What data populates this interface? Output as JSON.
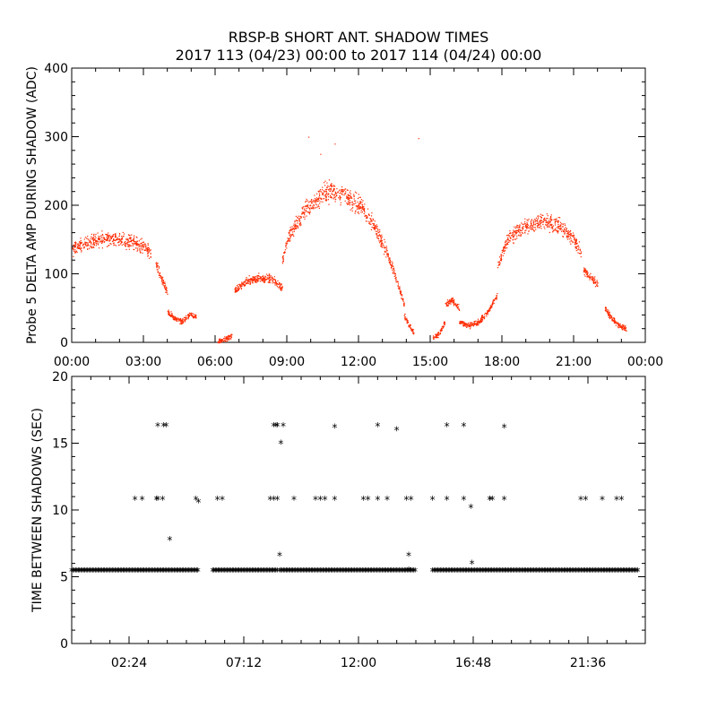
{
  "chart_data": [
    {
      "type": "scatter",
      "title": "RBSP-B SHORT ANT. SHADOW TIMES",
      "subtitle": "2017 113 (04/23) 00:00 to 2017 114 (04/24) 00:00",
      "xlabel": "",
      "ylabel": "Probe 5 DELTA AMP DURING SHADOW (ADC)",
      "xlim_hours": [
        0,
        24
      ],
      "ylim": [
        0,
        400
      ],
      "x_ticks": [
        "00:00",
        "03:00",
        "06:00",
        "09:00",
        "12:00",
        "15:00",
        "18:00",
        "21:00",
        "00:00"
      ],
      "y_ticks": [
        "0",
        "100",
        "200",
        "300",
        "400"
      ],
      "series": [
        {
          "name": "Probe 5 delta amp",
          "color": "#ff2a00",
          "segments": [
            {
              "hours": [
                0.0,
                0.5,
                1.0,
                1.5,
                2.0,
                2.5,
                3.0,
                3.3
              ],
              "values": [
                135,
                145,
                150,
                152,
                150,
                148,
                140,
                130
              ]
            },
            {
              "hours": [
                3.5,
                3.8,
                4.0
              ],
              "values": [
                115,
                90,
                70
              ]
            },
            {
              "hours": [
                4.0,
                4.3,
                4.6,
                4.9,
                5.2
              ],
              "values": [
                45,
                35,
                30,
                40,
                38
              ]
            },
            {
              "hours": [
                6.1,
                6.4,
                6.7
              ],
              "values": [
                2,
                5,
                10
              ]
            },
            {
              "hours": [
                6.8,
                7.2,
                7.6,
                8.0,
                8.4,
                8.8
              ],
              "values": [
                75,
                88,
                92,
                95,
                92,
                80
              ]
            },
            {
              "hours": [
                8.8,
                9.0,
                9.3,
                9.6
              ],
              "values": [
                120,
                150,
                170,
                180
              ]
            },
            {
              "hours": [
                9.6,
                10.0,
                10.4,
                10.8,
                11.2,
                11.6,
                12.0,
                12.4,
                12.8,
                13.2,
                13.6,
                13.9
              ],
              "values": [
                190,
                200,
                215,
                222,
                218,
                210,
                200,
                185,
                160,
                130,
                90,
                55
              ]
            },
            {
              "hours": [
                13.9,
                14.1,
                14.3
              ],
              "values": [
                40,
                25,
                15
              ]
            },
            {
              "hours": [
                15.1,
                15.4,
                15.6
              ],
              "values": [
                5,
                15,
                30
              ]
            },
            {
              "hours": [
                15.6,
                15.9,
                16.2
              ],
              "values": [
                55,
                62,
                50
              ]
            },
            {
              "hours": [
                16.2,
                16.6,
                17.0,
                17.4,
                17.8
              ],
              "values": [
                30,
                25,
                30,
                45,
                70
              ]
            },
            {
              "hours": [
                17.8,
                18.2,
                18.6,
                19.0,
                19.4,
                19.8,
                20.2,
                20.6,
                21.0,
                21.3
              ],
              "values": [
                110,
                150,
                163,
                168,
                175,
                178,
                172,
                165,
                150,
                130
              ]
            },
            {
              "hours": [
                21.4,
                21.7,
                22.0
              ],
              "values": [
                105,
                95,
                85
              ]
            },
            {
              "hours": [
                22.3,
                22.6,
                22.9,
                23.2
              ],
              "values": [
                50,
                35,
                25,
                20
              ]
            }
          ],
          "outliers": [
            {
              "hour": 9.9,
              "value": 300
            },
            {
              "hour": 11.0,
              "value": 290
            },
            {
              "hour": 14.5,
              "value": 298
            },
            {
              "hour": 10.4,
              "value": 275
            }
          ]
        }
      ]
    },
    {
      "type": "scatter",
      "title": "",
      "xlabel": "",
      "ylabel": "TIME BETWEEN SHADOWS (SEC)",
      "xlim_hours": [
        0,
        24
      ],
      "ylim": [
        0,
        20
      ],
      "x_ticks": [
        "02:24",
        "07:12",
        "12:00",
        "16:48",
        "21:36"
      ],
      "x_tick_hours": [
        2.4,
        7.2,
        12.0,
        16.8,
        21.6
      ],
      "y_ticks": [
        "0",
        "5",
        "10",
        "15",
        "20"
      ],
      "marker": "*",
      "baseline": {
        "value": 5.45,
        "segments_hours": [
          [
            0.0,
            5.3
          ],
          [
            5.9,
            8.6
          ],
          [
            8.7,
            14.4
          ],
          [
            15.1,
            23.7
          ]
        ]
      },
      "series": [
        {
          "name": "Time between shadows",
          "color": "#000000",
          "points_hours": [
            2.65,
            2.95,
            3.55,
            3.6,
            3.8,
            3.6,
            3.85,
            3.95,
            4.1,
            5.2,
            5.3,
            6.1,
            6.3,
            8.3,
            8.45,
            8.6,
            8.55,
            8.6,
            8.45,
            8.7,
            8.75,
            8.85,
            9.3,
            10.2,
            10.4,
            10.6,
            11.0,
            11.0,
            12.2,
            12.4,
            12.8,
            12.8,
            13.2,
            13.6,
            14.0,
            14.2,
            14.1,
            14.1,
            15.1,
            15.7,
            15.7,
            16.4,
            16.4,
            16.7,
            16.75,
            17.5,
            17.6,
            17.5,
            18.1,
            18.1,
            21.3,
            21.5,
            22.2,
            22.8,
            23.0
          ],
          "points_values": [
            10.8,
            10.8,
            10.8,
            10.8,
            10.8,
            16.3,
            16.3,
            16.3,
            7.8,
            10.8,
            10.6,
            10.8,
            10.8,
            10.8,
            10.8,
            10.8,
            16.3,
            16.3,
            16.3,
            6.6,
            15.0,
            16.3,
            10.8,
            10.8,
            10.8,
            10.8,
            10.8,
            16.2,
            10.8,
            10.8,
            10.8,
            16.3,
            10.8,
            16.0,
            10.8,
            10.8,
            6.6,
            5.5,
            10.8,
            10.8,
            16.3,
            10.8,
            16.3,
            10.2,
            6.0,
            10.8,
            10.8,
            10.8,
            10.8,
            16.2,
            10.8,
            10.8,
            10.8,
            10.8,
            10.8
          ]
        }
      ]
    }
  ]
}
